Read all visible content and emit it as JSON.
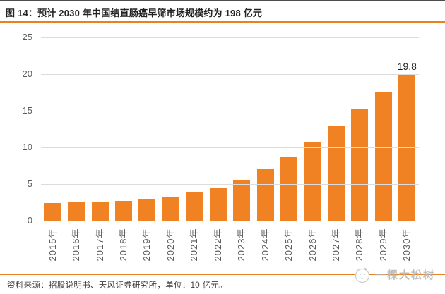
{
  "header": {
    "title": "图 14：预计 2030 年中国结直肠癌早筛市场规模约为 198 亿元"
  },
  "chart_data": {
    "type": "bar",
    "title": "预计 2030 年中国结直肠癌早筛市场规模约为 198 亿元",
    "categories": [
      "2015年",
      "2016年",
      "2017年",
      "2018年",
      "2019年",
      "2020年",
      "2021年",
      "2022年",
      "2023年",
      "2024年",
      "2025年",
      "2026年",
      "2027年",
      "2028年",
      "2029年",
      "2030年"
    ],
    "values": [
      2.4,
      2.5,
      2.6,
      2.7,
      3.0,
      3.2,
      3.9,
      4.5,
      5.6,
      7.0,
      8.7,
      10.8,
      12.9,
      15.2,
      17.6,
      19.8
    ],
    "unit": "10 亿元",
    "xlabel": "",
    "ylabel": "",
    "ylim": [
      0,
      25
    ],
    "yticks": [
      0,
      5,
      10,
      15,
      20,
      25
    ],
    "grid": true,
    "legend": "none",
    "annotations": [
      {
        "category": "2030年",
        "text": "19.8"
      }
    ]
  },
  "footer": {
    "source": "资料来源：招股说明书、天风证券研究所，单位：10 亿元。"
  },
  "watermark": {
    "label": "一棵大松树"
  },
  "colors": {
    "bar": "#f08223",
    "accent_line": "#e8821e",
    "top_border": "#4d4d4d",
    "grid": "#dcdcdc",
    "axis_line": "#c0c0c0",
    "axis_text": "#595959",
    "title_text": "#222222",
    "annotation_text": "#1f1f1f",
    "footer_text": "#3f3f3f",
    "watermark_text": "#b3b3b3"
  }
}
